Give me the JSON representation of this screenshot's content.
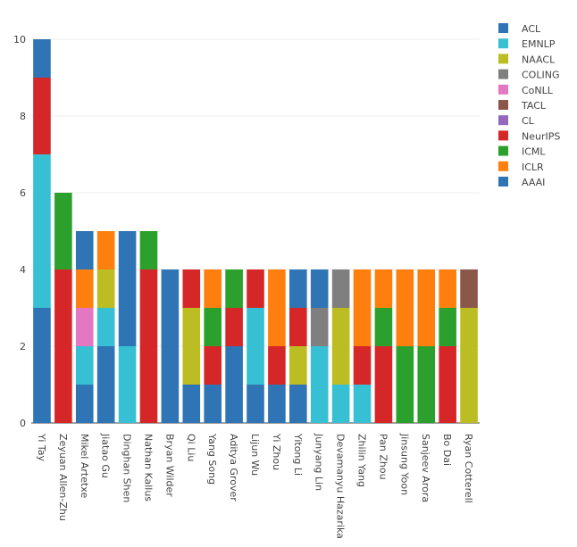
{
  "chart_data": {
    "type": "bar",
    "stacked": true,
    "title": "",
    "xlabel": "",
    "ylabel": "",
    "ylim": [
      0,
      10
    ],
    "yticks": [
      "0",
      "2",
      "4",
      "6",
      "8",
      "10"
    ],
    "legend_position": "top-right",
    "categories": [
      "Yi Tay",
      "Zeyuan Allen-Zhu",
      "Mikel Artetxe",
      "Jiatao Gu",
      "Dinghan Shen",
      "Nathan Kallus",
      "Bryan Wilder",
      "Qi Liu",
      "Yang Song",
      "Aditya Grover",
      "Lijun Wu",
      "Yi Zhou",
      "Yitong Li",
      "Junyang Lin",
      "Devamanyu Hazarika",
      "Zhilin Yang",
      "Pan Zhou",
      "Jinsung Yoon",
      "Sanjeev Arora",
      "Bo Dai",
      "Ryan Cotterell"
    ],
    "series": [
      {
        "name": "ACL",
        "color": "#2f74b5",
        "values": [
          3,
          0,
          1,
          2,
          0,
          0,
          4,
          1,
          1,
          2,
          1,
          1,
          1,
          0,
          0,
          0,
          0,
          0,
          0,
          0,
          0
        ]
      },
      {
        "name": "EMNLP",
        "color": "#37c0d4",
        "values": [
          4,
          0,
          1,
          1,
          2,
          0,
          0,
          0,
          0,
          0,
          2,
          0,
          0,
          2,
          1,
          1,
          0,
          0,
          0,
          0,
          0
        ]
      },
      {
        "name": "NAACL",
        "color": "#bcbd22",
        "values": [
          0,
          0,
          0,
          1,
          0,
          0,
          0,
          2,
          0,
          0,
          0,
          0,
          1,
          0,
          2,
          0,
          0,
          0,
          0,
          0,
          3
        ]
      },
      {
        "name": "COLING",
        "color": "#7f7f7f",
        "values": [
          0,
          0,
          0,
          0,
          0,
          0,
          0,
          0,
          0,
          0,
          0,
          0,
          0,
          1,
          1,
          0,
          0,
          0,
          0,
          0,
          0
        ]
      },
      {
        "name": "CoNLL",
        "color": "#e377c2",
        "values": [
          0,
          0,
          1,
          0,
          0,
          0,
          0,
          0,
          0,
          0,
          0,
          0,
          0,
          0,
          0,
          0,
          0,
          0,
          0,
          0,
          0
        ]
      },
      {
        "name": "TACL",
        "color": "#8c564b",
        "values": [
          0,
          0,
          0,
          0,
          0,
          0,
          0,
          0,
          0,
          0,
          0,
          0,
          0,
          0,
          0,
          0,
          0,
          0,
          0,
          0,
          1
        ]
      },
      {
        "name": "CL",
        "color": "#9467bd",
        "values": [
          0,
          0,
          0,
          0,
          0,
          0,
          0,
          0,
          0,
          0,
          0,
          0,
          0,
          0,
          0,
          0,
          0,
          0,
          0,
          0,
          0
        ]
      },
      {
        "name": "NeurIPS",
        "color": "#d62728",
        "values": [
          2,
          4,
          0,
          0,
          0,
          4,
          0,
          1,
          1,
          1,
          1,
          1,
          1,
          0,
          0,
          1,
          2,
          0,
          0,
          2,
          0
        ]
      },
      {
        "name": "ICML",
        "color": "#2ca02c",
        "values": [
          0,
          2,
          0,
          0,
          0,
          1,
          0,
          0,
          1,
          1,
          0,
          0,
          0,
          0,
          0,
          0,
          1,
          2,
          2,
          1,
          0
        ]
      },
      {
        "name": "ICLR",
        "color": "#ff7f0e",
        "values": [
          0,
          0,
          1,
          1,
          0,
          0,
          0,
          0,
          1,
          0,
          0,
          2,
          0,
          0,
          0,
          2,
          1,
          2,
          2,
          1,
          0
        ]
      },
      {
        "name": "AAAI",
        "color": "#2f74b5",
        "values": [
          1,
          0,
          1,
          0,
          3,
          0,
          0,
          0,
          0,
          0,
          0,
          0,
          1,
          1,
          0,
          0,
          0,
          0,
          0,
          0,
          0
        ]
      }
    ]
  }
}
